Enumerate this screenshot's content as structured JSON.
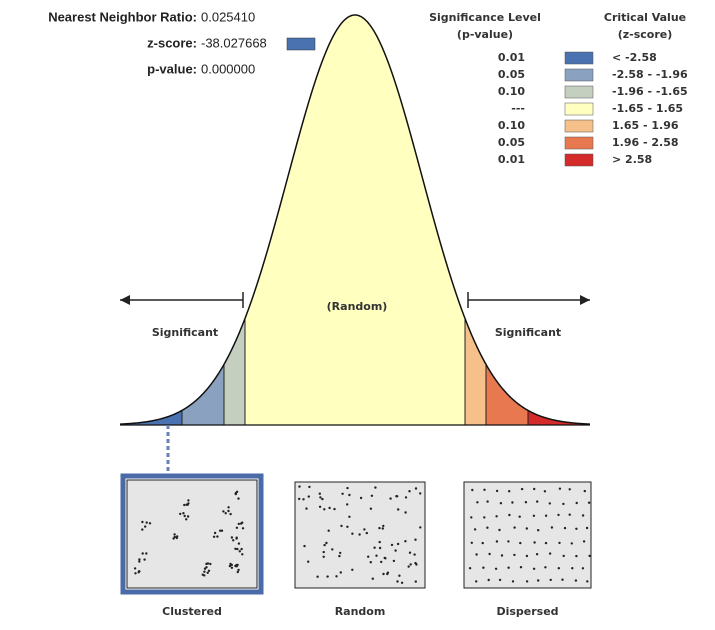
{
  "stats": [
    {
      "label": "Nearest Neighbor Ratio:",
      "value": "0.025410"
    },
    {
      "label": "z-score:",
      "value": "-38.027668"
    },
    {
      "label": "p-value:",
      "value": "0.000000"
    }
  ],
  "legend": {
    "significance_header": [
      "Significance Level",
      "(p-value)"
    ],
    "critical_header": [
      "Critical Value",
      "(z-score)"
    ],
    "rows": [
      {
        "p": "0.01",
        "z": "< -2.58",
        "color": "#4a72b0"
      },
      {
        "p": "0.05",
        "z": "-2.58 - -1.96",
        "color": "#8aa1c0"
      },
      {
        "p": "0.10",
        "z": "-1.96 - -1.65",
        "color": "#c5cfc0"
      },
      {
        "p": "---",
        "z": "-1.65 - 1.65",
        "color": "#ffffc0"
      },
      {
        "p": "0.10",
        "z": "1.65 - 1.96",
        "color": "#f5c08a"
      },
      {
        "p": "0.05",
        "z": "1.96 - 2.58",
        "color": "#e8784f"
      },
      {
        "p": "0.01",
        "z": "> 2.58",
        "color": "#d42a2a"
      }
    ]
  },
  "curve_labels": {
    "center": "(Random)",
    "left": "Significant",
    "right": "Significant"
  },
  "patterns": [
    "Clustered",
    "Random",
    "Dispersed"
  ]
}
